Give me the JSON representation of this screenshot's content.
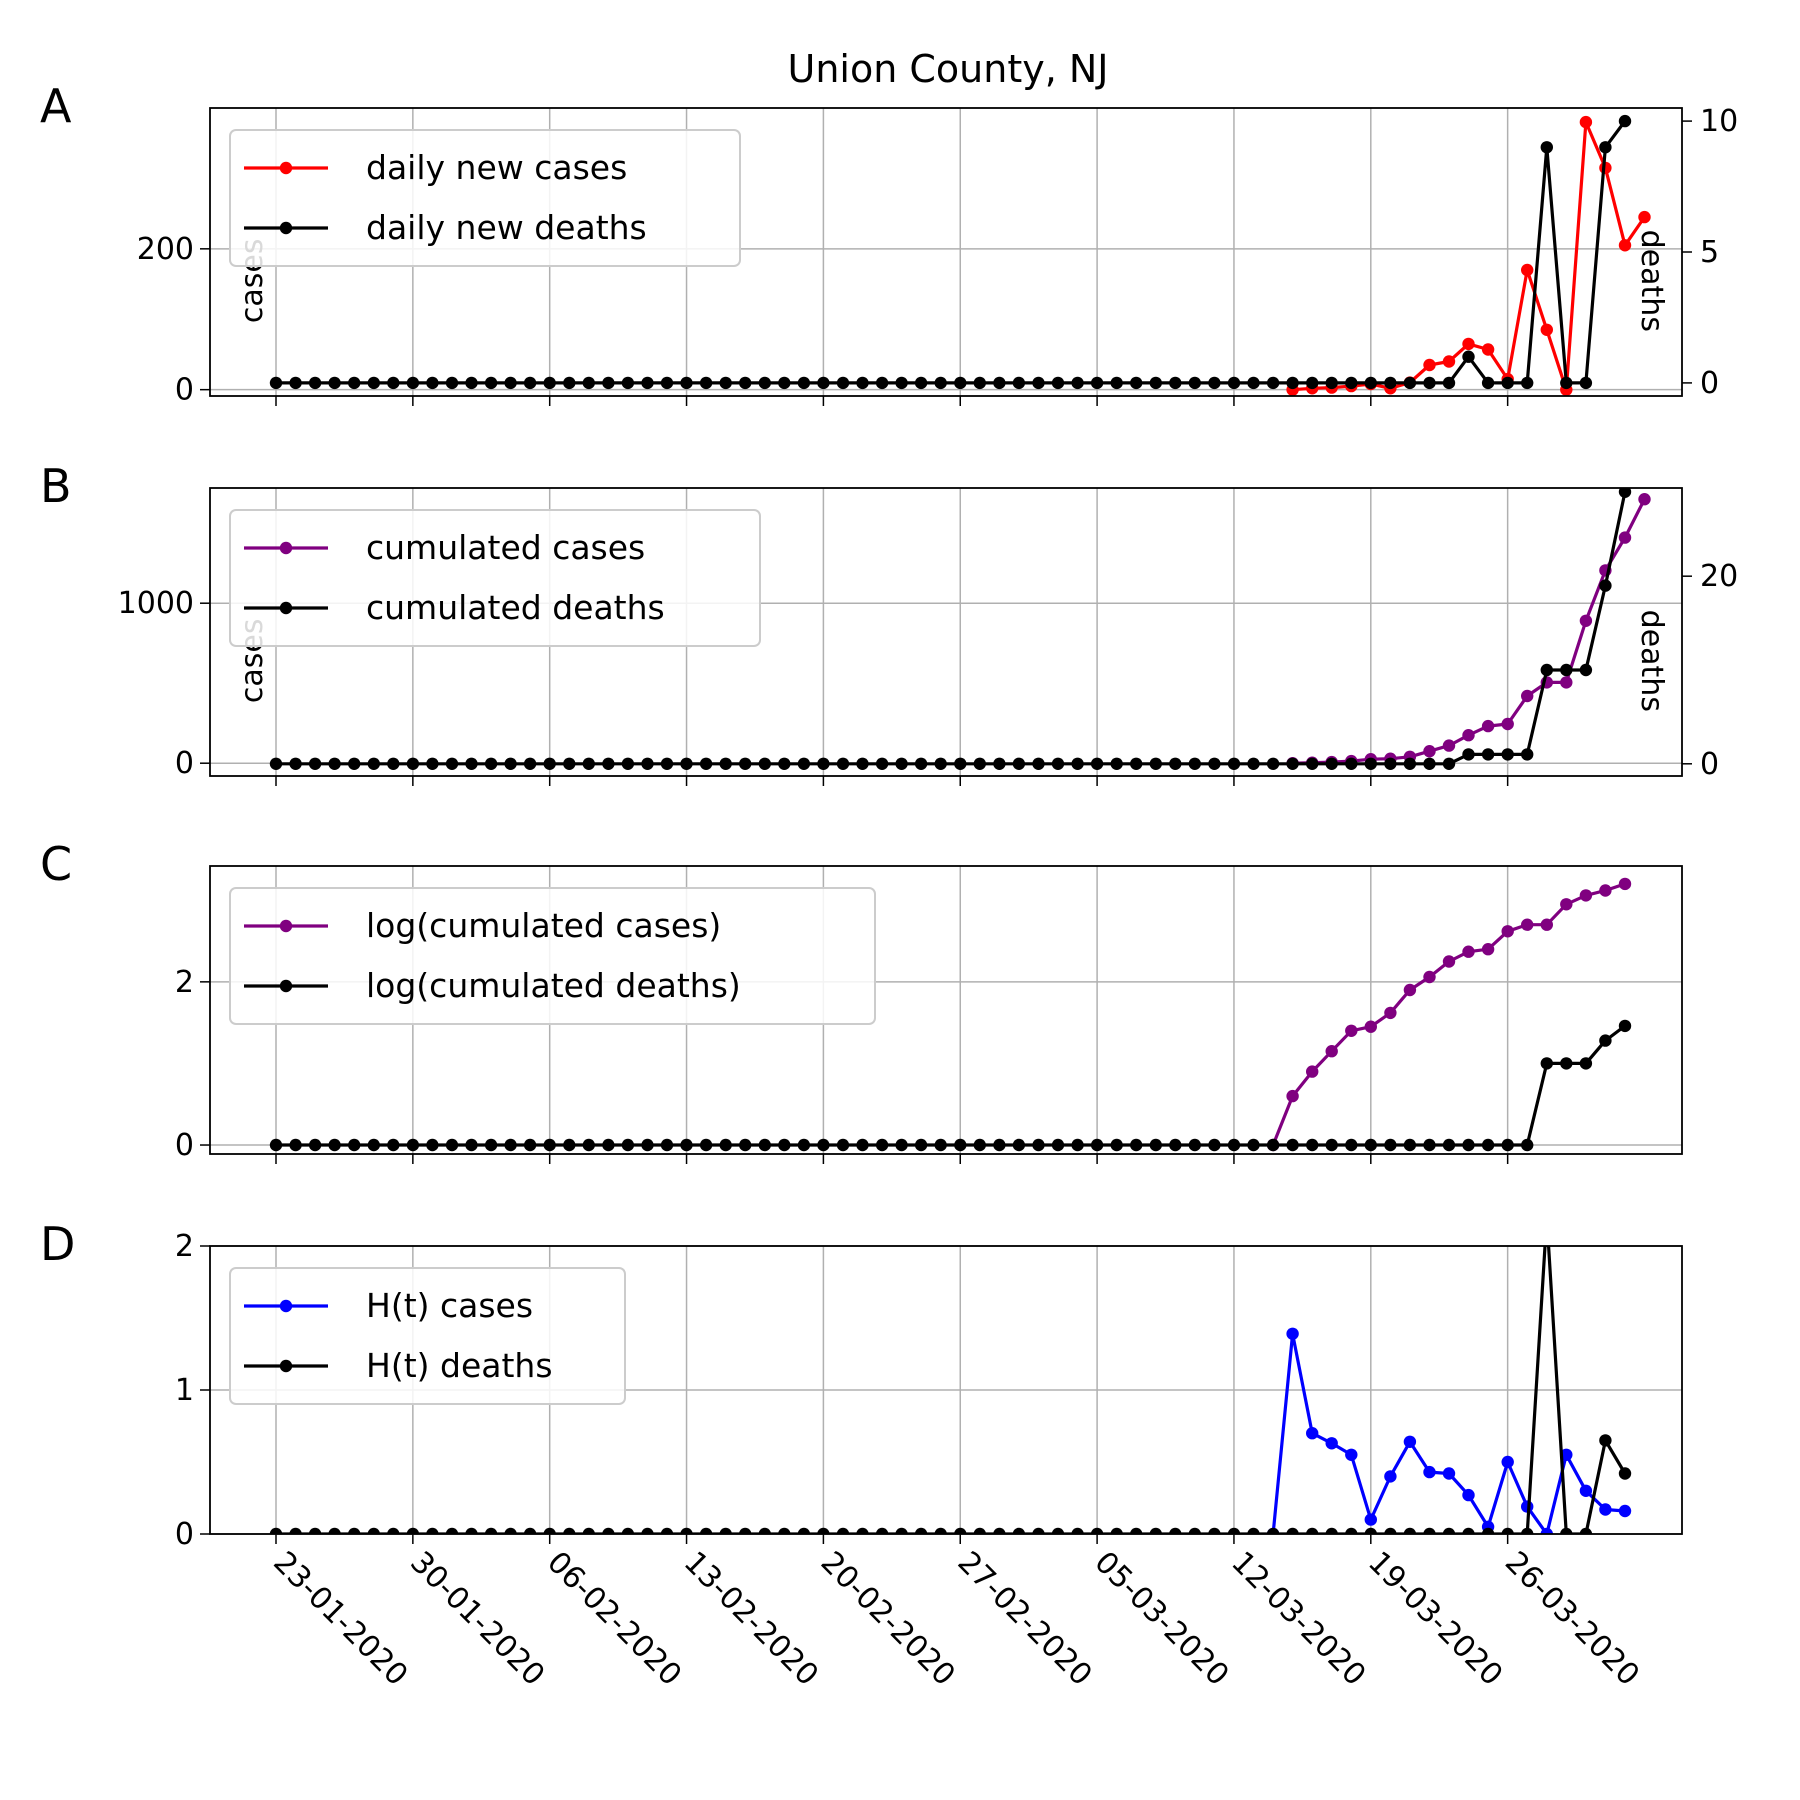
{
  "title": "Union County, NJ",
  "colors": {
    "red": "#ff0000",
    "black": "#000000",
    "purple": "#800080",
    "blue": "#0000ff"
  },
  "x_dates": [
    "23-01-2020",
    "30-01-2020",
    "06-02-2020",
    "13-02-2020",
    "20-02-2020",
    "27-02-2020",
    "05-03-2020",
    "12-03-2020",
    "19-03-2020",
    "26-03-2020"
  ],
  "chart_data": [
    {
      "panel": "A",
      "type": "line",
      "y_left_label": "cases",
      "y_right_label": "deaths",
      "y_left_ticks": [
        "0",
        "200"
      ],
      "y_right_ticks": [
        "0",
        "5",
        "10"
      ],
      "ylim_left": [
        -9,
        400
      ],
      "ylim_right": [
        -0.5,
        10.5
      ],
      "legend": "top-left",
      "grid": true,
      "series": [
        {
          "name": "daily new cases",
          "axis": "left",
          "color": "#ff0000",
          "start_index": 52,
          "values": [
            0,
            2,
            3,
            5,
            8,
            2,
            10,
            35,
            40,
            65,
            57,
            15,
            170,
            85,
            0,
            380,
            315,
            205,
            245
          ]
        },
        {
          "name": "daily new deaths",
          "axis": "right",
          "color": "#000000",
          "start_index": 0,
          "values": [
            0,
            0,
            0,
            0,
            0,
            0,
            0,
            0,
            0,
            0,
            0,
            0,
            0,
            0,
            0,
            0,
            0,
            0,
            0,
            0,
            0,
            0,
            0,
            0,
            0,
            0,
            0,
            0,
            0,
            0,
            0,
            0,
            0,
            0,
            0,
            0,
            0,
            0,
            0,
            0,
            0,
            0,
            0,
            0,
            0,
            0,
            0,
            0,
            0,
            0,
            0,
            0,
            0,
            0,
            0,
            0,
            0,
            0,
            0,
            0,
            0,
            1,
            0,
            0,
            0,
            9,
            0,
            0,
            9,
            10
          ]
        }
      ]
    },
    {
      "panel": "B",
      "type": "line",
      "y_left_label": "cases",
      "y_right_label": "deaths",
      "y_left_ticks": [
        "0",
        "1000"
      ],
      "y_right_ticks": [
        "0",
        "20"
      ],
      "ylim_left": [
        -80,
        1720
      ],
      "ylim_right": [
        -1.3,
        29.4
      ],
      "legend": "top-left",
      "grid": true,
      "series": [
        {
          "name": "cumulated cases",
          "axis": "left",
          "color": "#800080",
          "start_index": 52,
          "values": [
            0,
            3,
            7,
            13,
            25,
            28,
            40,
            75,
            110,
            175,
            232,
            245,
            420,
            505,
            505,
            890,
            1205,
            1410,
            1650
          ]
        },
        {
          "name": "cumulated deaths",
          "axis": "right",
          "color": "#000000",
          "start_index": 0,
          "values": [
            0,
            0,
            0,
            0,
            0,
            0,
            0,
            0,
            0,
            0,
            0,
            0,
            0,
            0,
            0,
            0,
            0,
            0,
            0,
            0,
            0,
            0,
            0,
            0,
            0,
            0,
            0,
            0,
            0,
            0,
            0,
            0,
            0,
            0,
            0,
            0,
            0,
            0,
            0,
            0,
            0,
            0,
            0,
            0,
            0,
            0,
            0,
            0,
            0,
            0,
            0,
            0,
            0,
            0,
            0,
            0,
            0,
            0,
            0,
            0,
            0,
            1,
            1,
            1,
            1,
            10,
            10,
            10,
            19,
            29
          ]
        }
      ]
    },
    {
      "panel": "C",
      "type": "line",
      "y_left_ticks": [
        "0",
        "2"
      ],
      "ylim": [
        -0.11,
        3.42
      ],
      "legend": "top-left",
      "grid": true,
      "series": [
        {
          "name": "log(cumulated cases)",
          "color": "#800080",
          "start_index": 51,
          "values": [
            0,
            0.6,
            0.9,
            1.15,
            1.4,
            1.45,
            1.62,
            1.9,
            2.06,
            2.25,
            2.37,
            2.4,
            2.62,
            2.7,
            2.7,
            2.95,
            3.06,
            3.12,
            3.2
          ]
        },
        {
          "name": "log(cumulated deaths)",
          "color": "#000000",
          "start_index": 0,
          "values": [
            0,
            0,
            0,
            0,
            0,
            0,
            0,
            0,
            0,
            0,
            0,
            0,
            0,
            0,
            0,
            0,
            0,
            0,
            0,
            0,
            0,
            0,
            0,
            0,
            0,
            0,
            0,
            0,
            0,
            0,
            0,
            0,
            0,
            0,
            0,
            0,
            0,
            0,
            0,
            0,
            0,
            0,
            0,
            0,
            0,
            0,
            0,
            0,
            0,
            0,
            0,
            0,
            0,
            0,
            0,
            0,
            0,
            0,
            0,
            0,
            0,
            0,
            0,
            0,
            0,
            1,
            1,
            1,
            1.28,
            1.46
          ]
        }
      ]
    },
    {
      "panel": "D",
      "type": "line",
      "y_left_ticks": [
        "0",
        "1",
        "2"
      ],
      "ylim": [
        0,
        2
      ],
      "legend": "top-left",
      "grid": true,
      "series": [
        {
          "name": "H(t) cases",
          "color": "#0000ff",
          "start_index": 51,
          "values": [
            0,
            1.39,
            0.7,
            0.63,
            0.55,
            0.1,
            0.4,
            0.64,
            0.43,
            0.42,
            0.27,
            0.05,
            0.5,
            0.19,
            0,
            0.55,
            0.3,
            0.17,
            0.16
          ]
        },
        {
          "name": "H(t) deaths",
          "color": "#000000",
          "start_index": 0,
          "values": [
            0,
            0,
            0,
            0,
            0,
            0,
            0,
            0,
            0,
            0,
            0,
            0,
            0,
            0,
            0,
            0,
            0,
            0,
            0,
            0,
            0,
            0,
            0,
            0,
            0,
            0,
            0,
            0,
            0,
            0,
            0,
            0,
            0,
            0,
            0,
            0,
            0,
            0,
            0,
            0,
            0,
            0,
            0,
            0,
            0,
            0,
            0,
            0,
            0,
            0,
            0,
            0,
            0,
            0,
            0,
            0,
            0,
            0,
            0,
            0,
            0,
            0,
            0,
            0,
            0,
            2.2,
            0,
            0,
            0.65,
            0.42
          ]
        }
      ]
    }
  ]
}
